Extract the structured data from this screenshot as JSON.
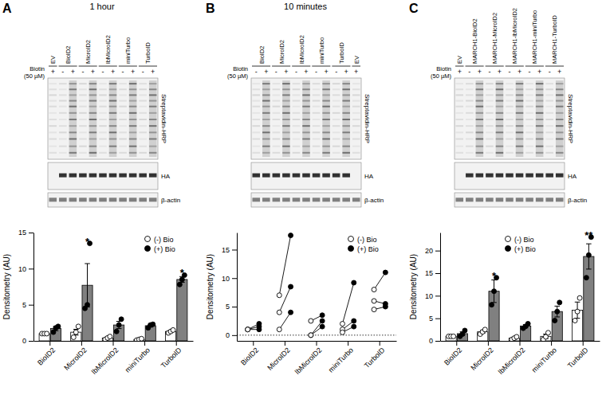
{
  "chart_data": [
    {
      "type": "bar",
      "y_label": "Densitometry (AU)",
      "categories": [
        "BioID2",
        "MicroID2",
        "lbMicroID2",
        "miniTurbo",
        "TurboID"
      ],
      "ylim": [
        0,
        15
      ],
      "yticks": [
        0,
        5,
        10,
        15
      ],
      "legend": "top-right",
      "series": [
        {
          "name": "(-) Bio",
          "color": "#ffffff",
          "marker": "open-circle",
          "values": [
            1.0,
            1.2,
            0.4,
            0.2,
            1.3
          ],
          "errors": [
            0.05,
            0.4,
            0.1,
            0.05,
            0.1
          ],
          "points": [
            [
              1.0,
              1.0,
              1.0
            ],
            [
              0.5,
              1.2,
              2.0
            ],
            [
              0.2,
              0.4,
              0.6
            ],
            [
              0.1,
              0.2,
              0.3
            ],
            [
              1.1,
              1.3,
              1.5
            ]
          ]
        },
        {
          "name": "(+) Bio",
          "color": "#808080",
          "marker": "filled-circle",
          "values": [
            1.7,
            7.7,
            2.2,
            2.1,
            8.5
          ],
          "errors": [
            0.3,
            3.0,
            0.5,
            0.2,
            0.4
          ],
          "points": [
            [
              1.2,
              1.8,
              2.0
            ],
            [
              4.5,
              5.0,
              13.5
            ],
            [
              1.3,
              2.2,
              3.0
            ],
            [
              1.8,
              2.2,
              2.3
            ],
            [
              7.8,
              8.5,
              9.1
            ]
          ]
        }
      ],
      "annotations": [
        {
          "category": "MicroID2",
          "text": "*"
        },
        {
          "category": "TurboID",
          "text": "*"
        }
      ]
    },
    {
      "type": "line",
      "y_label": "Densitometry (AU)",
      "categories": [
        "BioID2",
        "MicroID2",
        "lbMicroID2",
        "miniTurbo",
        "TurboID"
      ],
      "ylim": [
        -1,
        18
      ],
      "yticks": [
        0,
        5,
        10,
        15
      ],
      "legend": "top-right",
      "reference_line": {
        "value": 0,
        "line_style": "dotted"
      },
      "series": [
        {
          "name": "(-) Bio",
          "color": "#000000",
          "marker": "open-circle",
          "values": [
            [
              1.0,
              1.0,
              1.0
            ],
            [
              7.0,
              4.0,
              1.0
            ],
            [
              2.5,
              0.0,
              0.0
            ],
            [
              2.0,
              1.0,
              0.5
            ],
            [
              8.0,
              6.0,
              4.5
            ]
          ]
        },
        {
          "name": "(+) Bio",
          "color": "#000000",
          "marker": "filled-circle",
          "values": [
            [
              1.0,
              1.5,
              2.0
            ],
            [
              17.5,
              8.5,
              4.0
            ],
            [
              3.5,
              2.5,
              1.5
            ],
            [
              9.2,
              2.5,
              1.5
            ],
            [
              11.0,
              5.5,
              5.0
            ]
          ]
        }
      ]
    },
    {
      "type": "bar",
      "y_label": "Densitometry (AU)",
      "categories": [
        "BioID2",
        "MicroID2",
        "lbMicroID2",
        "miniTurbo",
        "TurboID"
      ],
      "ylim": [
        0,
        24
      ],
      "yticks": [
        0,
        5,
        10,
        15,
        20
      ],
      "legend": "top-center",
      "series": [
        {
          "name": "(-) Bio",
          "color": "#ffffff",
          "marker": "open-circle",
          "values": [
            1.0,
            2.0,
            0.6,
            1.0,
            6.8
          ],
          "errors": [
            0.05,
            0.3,
            0.2,
            0.5,
            1.8
          ],
          "points": [
            [
              1.0,
              1.0,
              1.0
            ],
            [
              1.5,
              2.0,
              2.5
            ],
            [
              0.3,
              0.6,
              0.9
            ],
            [
              0.3,
              0.9,
              1.8
            ],
            [
              4.5,
              6.5,
              9.5
            ]
          ]
        },
        {
          "name": "(+) Bio",
          "color": "#808080",
          "marker": "filled-circle",
          "values": [
            1.6,
            11.0,
            3.3,
            6.5,
            18.7
          ],
          "errors": [
            0.4,
            2.5,
            0.3,
            1.2,
            2.8
          ],
          "points": [
            [
              1.0,
              1.5,
              2.3
            ],
            [
              8.0,
              11.0,
              14.0
            ],
            [
              2.8,
              3.2,
              3.8
            ],
            [
              4.5,
              6.5,
              8.5
            ],
            [
              14.0,
              19.0,
              23.0
            ]
          ]
        }
      ],
      "annotations": [
        {
          "category": "MicroID2",
          "text": "*"
        },
        {
          "category": "TurboID",
          "text": "**"
        }
      ]
    }
  ],
  "panels": [
    {
      "label": "A",
      "title": "1 hour",
      "biotin_label": [
        "Biotin",
        "(50 µM)"
      ],
      "blot_labels": [
        "Streptavidin-HRP",
        "HA",
        "β-actin"
      ],
      "lanes": [
        {
          "name": "EV",
          "biotin": [
            "+"
          ]
        },
        {
          "name": "BioID2",
          "biotin": [
            "-",
            "+"
          ]
        },
        {
          "name": "MicroID2",
          "biotin": [
            "-",
            "+"
          ]
        },
        {
          "name": "lbMicroID2",
          "biotin": [
            "-",
            "+"
          ]
        },
        {
          "name": "miniTurbo",
          "biotin": [
            "-",
            "+"
          ]
        },
        {
          "name": "TurboID",
          "biotin": [
            "-",
            "+"
          ]
        }
      ]
    },
    {
      "label": "B",
      "title": "10 minutes",
      "biotin_label": [
        "Biotin",
        "(50 µM)"
      ],
      "blot_labels": [
        "Streptavidin-HRP",
        "HA",
        "β-actin"
      ],
      "lanes": [
        {
          "name": "BioID2",
          "biotin": [
            "-",
            "+"
          ]
        },
        {
          "name": "MicroID2",
          "biotin": [
            "-",
            "+"
          ]
        },
        {
          "name": "lbMicroID2",
          "biotin": [
            "-",
            "+"
          ]
        },
        {
          "name": "miniTurbo",
          "biotin": [
            "-",
            "+"
          ]
        },
        {
          "name": "TurboID",
          "biotin": [
            "-",
            "+"
          ]
        },
        {
          "name": "EV",
          "biotin": [
            "+"
          ]
        }
      ]
    },
    {
      "label": "C",
      "biotin_label": [
        "Biotin",
        "(50 µM)"
      ],
      "blot_labels": [
        "Streptavidin-HRP",
        "HA",
        "β-actin"
      ],
      "lanes": [
        {
          "name": "EV",
          "biotin": [
            "+"
          ]
        },
        {
          "name": "MARCH1-BioID2",
          "biotin": [
            "-",
            "+"
          ]
        },
        {
          "name": "MARCH1-MicroID2",
          "biotin": [
            "-",
            "+"
          ]
        },
        {
          "name": "MARCH1-lbMicroID2",
          "biotin": [
            "-",
            "+"
          ]
        },
        {
          "name": "MARCH1-miniTurbo",
          "biotin": [
            "-",
            "+"
          ]
        },
        {
          "name": "MARCH1-TurboID",
          "biotin": [
            "-",
            "+"
          ]
        }
      ]
    }
  ]
}
